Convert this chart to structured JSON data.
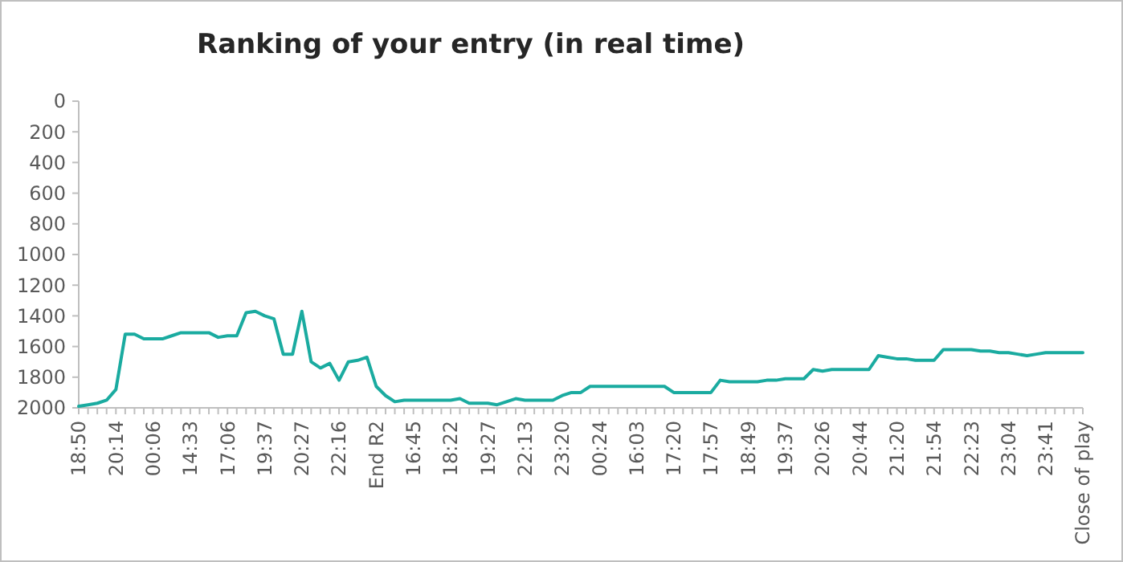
{
  "chart_data": {
    "type": "line",
    "title": "Ranking of your entry (in real time)",
    "categories": [
      "18:50",
      null,
      null,
      null,
      "20:14",
      null,
      null,
      null,
      "00:06",
      null,
      null,
      null,
      "14:33",
      null,
      null,
      null,
      "17:06",
      null,
      null,
      null,
      "19:37",
      null,
      null,
      null,
      "20:27",
      null,
      null,
      null,
      "22:16",
      null,
      null,
      null,
      "End R2",
      null,
      null,
      null,
      "16:45",
      null,
      null,
      null,
      "18:22",
      null,
      null,
      null,
      "19:27",
      null,
      null,
      null,
      "22:13",
      null,
      null,
      null,
      "23:20",
      null,
      null,
      null,
      "00:24",
      null,
      null,
      null,
      "16:03",
      null,
      null,
      null,
      "17:20",
      null,
      null,
      null,
      "17:57",
      null,
      null,
      null,
      "18:49",
      null,
      null,
      null,
      "19:37",
      null,
      null,
      null,
      "20:26",
      null,
      null,
      null,
      "20:44",
      null,
      null,
      null,
      "21:20",
      null,
      null,
      null,
      "21:54",
      null,
      null,
      null,
      "22:23",
      null,
      null,
      null,
      "23:04",
      null,
      null,
      null,
      "23:41",
      null,
      null,
      null,
      "Close of play"
    ],
    "series": [
      {
        "color": "#1aaba0",
        "values": [
          1990,
          1980,
          1970,
          1950,
          1880,
          1520,
          1520,
          1550,
          1550,
          1550,
          1530,
          1510,
          1510,
          1510,
          1510,
          1540,
          1530,
          1530,
          1380,
          1370,
          1400,
          1420,
          1650,
          1650,
          1370,
          1700,
          1740,
          1710,
          1820,
          1700,
          1690,
          1670,
          1860,
          1920,
          1960,
          1950,
          1950,
          1950,
          1950,
          1950,
          1950,
          1940,
          1970,
          1970,
          1970,
          1980,
          1960,
          1940,
          1950,
          1950,
          1950,
          1950,
          1920,
          1900,
          1900,
          1860,
          1860,
          1860,
          1860,
          1860,
          1860,
          1860,
          1860,
          1860,
          1900,
          1900,
          1900,
          1900,
          1900,
          1820,
          1830,
          1830,
          1830,
          1830,
          1820,
          1820,
          1810,
          1810,
          1810,
          1750,
          1760,
          1750,
          1750,
          1750,
          1750,
          1750,
          1660,
          1670,
          1680,
          1680,
          1690,
          1690,
          1690,
          1620,
          1620,
          1620,
          1620,
          1630,
          1630,
          1640,
          1640,
          1650,
          1660,
          1650,
          1640,
          1640,
          1640,
          1640,
          1640
        ]
      }
    ],
    "ylim": [
      2000,
      0
    ],
    "yticks": [
      0,
      200,
      400,
      600,
      800,
      1000,
      1200,
      1400,
      1600,
      1800,
      2000
    ]
  }
}
